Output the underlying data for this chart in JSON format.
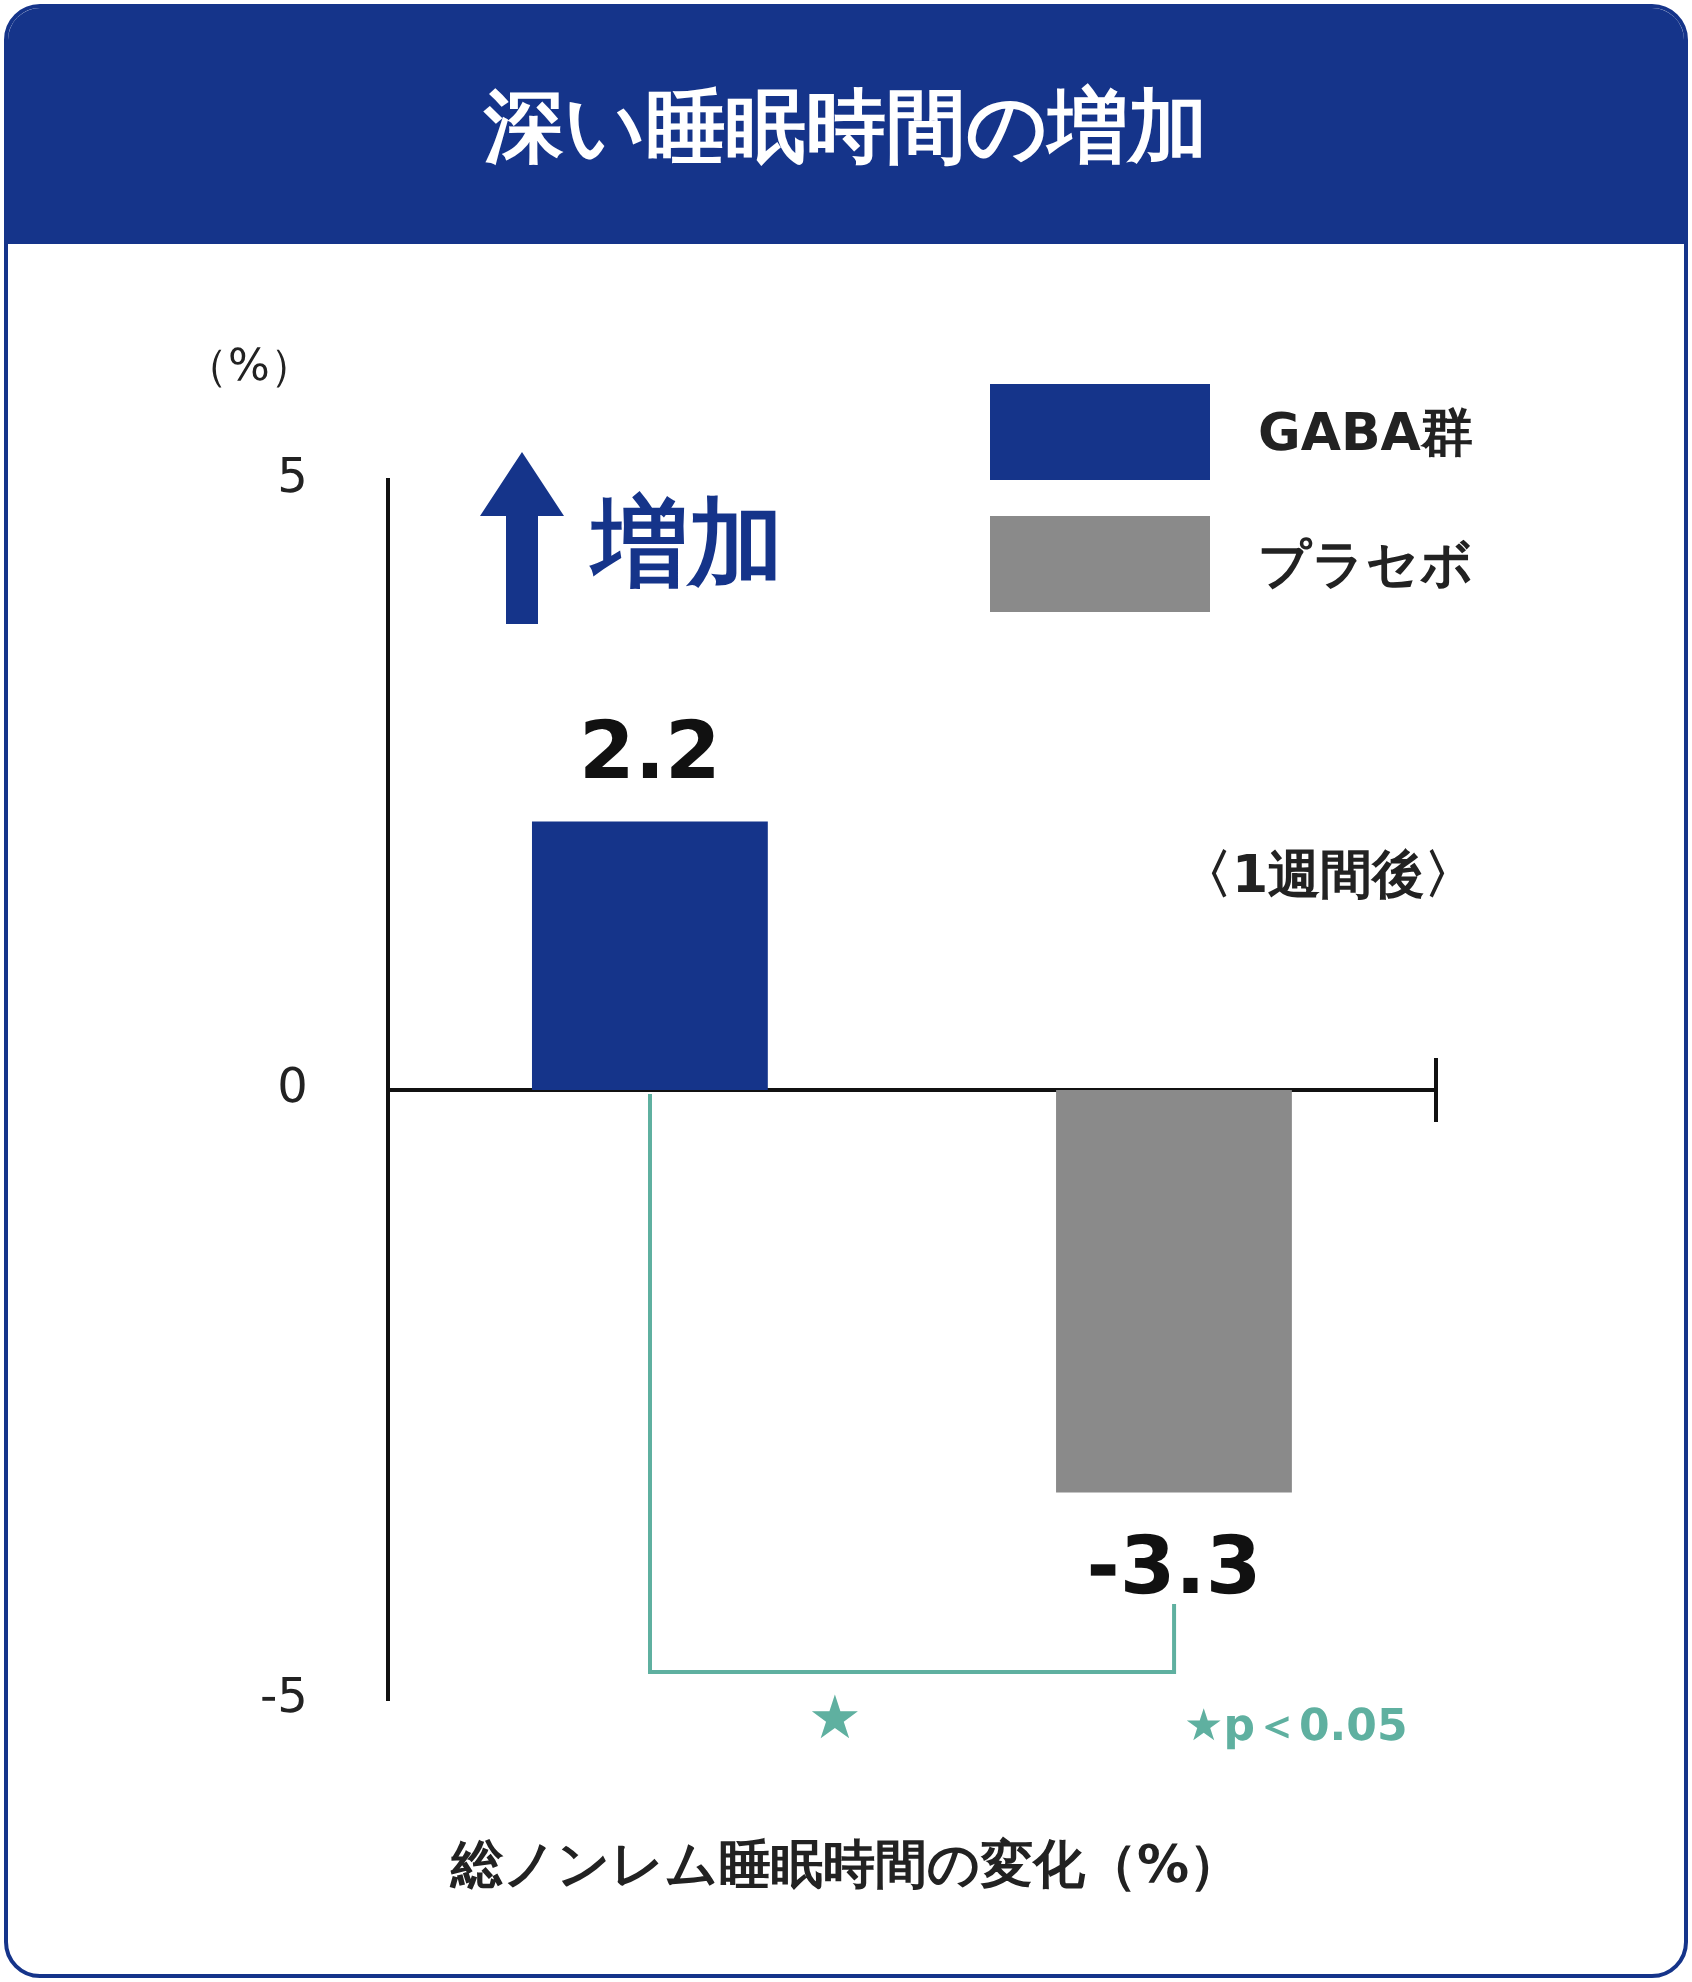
{
  "chart_data": {
    "type": "bar",
    "title": "深い睡眠時間の増加",
    "xlabel": "総ノンレム睡眠時間の変化（%）",
    "ylabel": "（%）",
    "categories": [
      null,
      null
    ],
    "series": [
      {
        "name": "GABA群",
        "color": "#15348a",
        "values": [
          2.2,
          null
        ]
      },
      {
        "name": "プラセボ",
        "color": "#8a8a8a",
        "values": [
          null,
          -3.3
        ]
      }
    ],
    "ylim": [
      -5,
      5
    ],
    "yticks": [
      -5,
      0,
      5
    ],
    "legend": "top right",
    "data_labels": true,
    "annotations": [
      "増加",
      "〈1週間後〉",
      "★",
      "★p＜0.05"
    ]
  }
}
